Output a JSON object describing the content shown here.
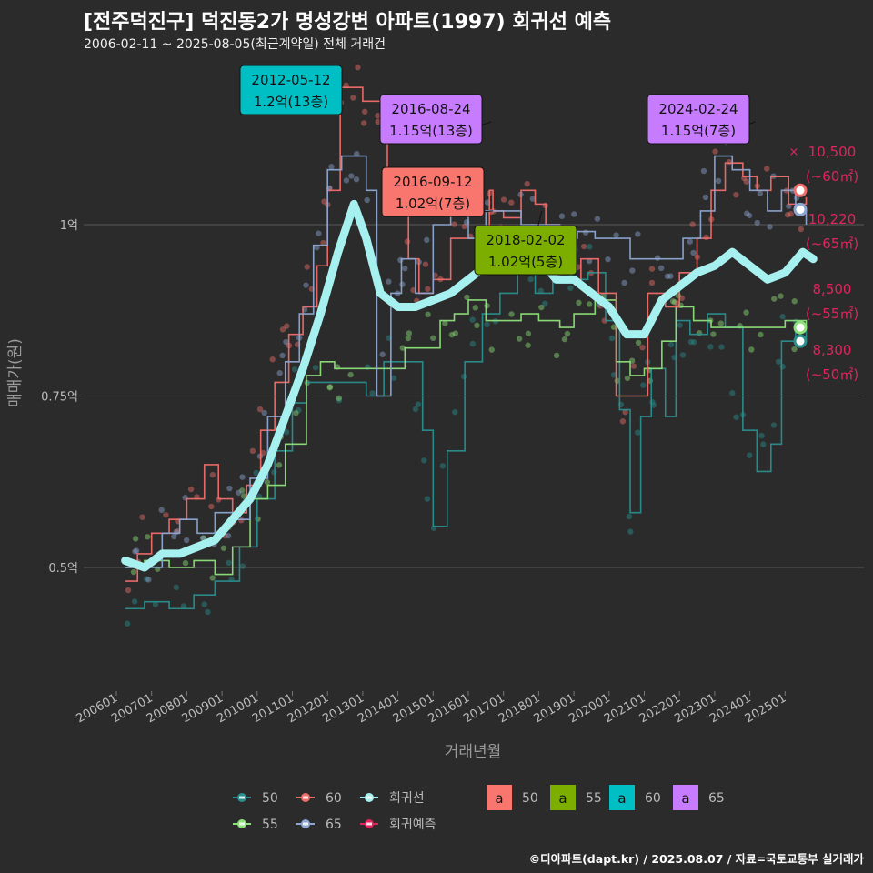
{
  "header": {
    "title": "[전주덕진구] 덕진동2가 명성강변 아파트(1997) 회귀선 예측",
    "subtitle": "2006-02-11 ~ 2025-08-05(최근계약일) 전체 거래건"
  },
  "caption": "©디아파트(dapt.kr) / 2025.08.07 / 자료=국토교통부 실거래가",
  "colors": {
    "s50": "#2a8f8f",
    "s55": "#8ee07a",
    "s60": "#f06e6a",
    "s65": "#8ea6d2",
    "trend": "#a6f0f0",
    "forecast": "#e0245e",
    "lbl50": "#f8766d",
    "lbl55": "#7cae00",
    "lbl60": "#00bfc4",
    "lbl65": "#c77cff"
  },
  "chart_data": {
    "type": "line",
    "title": "[전주덕진구] 덕진동2가 명성강변 아파트(1997) 회귀선 예측",
    "xlabel": "거래년월",
    "ylabel": "매매가(원)",
    "x_ticks": [
      "200601",
      "200701",
      "200801",
      "200901",
      "201001",
      "201101",
      "201201",
      "201301",
      "201401",
      "201501",
      "201601",
      "201701",
      "201801",
      "201901",
      "202001",
      "202101",
      "202201",
      "202301",
      "202401",
      "202501"
    ],
    "y_ticks": [
      {
        "value": 0.5,
        "label": "0.5억"
      },
      {
        "value": 0.75,
        "label": "0.75억"
      },
      {
        "value": 1.0,
        "label": "1억"
      }
    ],
    "ylim": [
      0.33,
      1.23
    ],
    "xlim": [
      2005.8,
      2026.0
    ],
    "grid": true,
    "legend_position": "bottom",
    "series": [
      {
        "name": "50",
        "points": [
          [
            2006.25,
            0.44
          ],
          [
            2006.8,
            0.45
          ],
          [
            2007.5,
            0.44
          ],
          [
            2008.2,
            0.46
          ],
          [
            2008.8,
            0.48
          ],
          [
            2009.5,
            0.53
          ],
          [
            2010.0,
            0.6
          ],
          [
            2010.5,
            0.67
          ],
          [
            2011.0,
            0.74
          ],
          [
            2011.4,
            0.77
          ],
          [
            2013.1,
            0.75
          ],
          [
            2013.6,
            0.8
          ],
          [
            2014.2,
            0.8
          ],
          [
            2014.7,
            0.7
          ],
          [
            2015.0,
            0.56
          ],
          [
            2015.4,
            0.67
          ],
          [
            2015.9,
            0.8
          ],
          [
            2016.4,
            0.87
          ],
          [
            2016.9,
            0.9
          ],
          [
            2017.4,
            0.93
          ],
          [
            2017.9,
            0.9
          ],
          [
            2018.4,
            0.95
          ],
          [
            2018.9,
            0.92
          ],
          [
            2019.4,
            0.93
          ],
          [
            2019.9,
            0.86
          ],
          [
            2020.3,
            0.73
          ],
          [
            2020.6,
            0.58
          ],
          [
            2020.9,
            0.72
          ],
          [
            2021.2,
            0.79
          ],
          [
            2021.6,
            0.72
          ],
          [
            2021.9,
            0.86
          ],
          [
            2022.3,
            0.84
          ],
          [
            2022.8,
            0.87
          ],
          [
            2023.3,
            0.85
          ],
          [
            2023.8,
            0.7
          ],
          [
            2024.2,
            0.64
          ],
          [
            2024.6,
            0.68
          ],
          [
            2024.9,
            0.83
          ],
          [
            2025.3,
            0.85
          ],
          [
            2025.6,
            0.83
          ]
        ]
      },
      {
        "name": "55",
        "points": [
          [
            2006.25,
            0.5
          ],
          [
            2006.8,
            0.51
          ],
          [
            2007.5,
            0.5
          ],
          [
            2008.2,
            0.51
          ],
          [
            2008.8,
            0.49
          ],
          [
            2009.3,
            0.53
          ],
          [
            2009.8,
            0.6
          ],
          [
            2010.3,
            0.62
          ],
          [
            2010.8,
            0.68
          ],
          [
            2011.4,
            0.78
          ],
          [
            2011.8,
            0.8
          ],
          [
            2012.2,
            0.79
          ],
          [
            2012.6,
            0.79
          ],
          [
            2014.2,
            0.82
          ],
          [
            2014.7,
            0.82
          ],
          [
            2015.2,
            0.86
          ],
          [
            2015.6,
            0.87
          ],
          [
            2016.0,
            0.89
          ],
          [
            2016.5,
            0.86
          ],
          [
            2017.0,
            0.86
          ],
          [
            2017.5,
            0.87
          ],
          [
            2018.0,
            0.86
          ],
          [
            2018.6,
            0.85
          ],
          [
            2019.0,
            0.87
          ],
          [
            2019.6,
            0.89
          ],
          [
            2020.2,
            0.8
          ],
          [
            2020.6,
            0.78
          ],
          [
            2021.0,
            0.79
          ],
          [
            2021.5,
            0.83
          ],
          [
            2021.9,
            0.88
          ],
          [
            2022.4,
            0.86
          ],
          [
            2022.9,
            0.85
          ],
          [
            2023.4,
            0.85
          ],
          [
            2024.0,
            0.85
          ],
          [
            2024.5,
            0.85
          ],
          [
            2025.0,
            0.86
          ],
          [
            2025.6,
            0.85
          ]
        ]
      },
      {
        "name": "60",
        "points": [
          [
            2006.25,
            0.48
          ],
          [
            2006.6,
            0.52
          ],
          [
            2007.0,
            0.55
          ],
          [
            2007.5,
            0.57
          ],
          [
            2008.0,
            0.6
          ],
          [
            2008.5,
            0.65
          ],
          [
            2008.9,
            0.6
          ],
          [
            2009.3,
            0.58
          ],
          [
            2009.7,
            0.62
          ],
          [
            2010.1,
            0.7
          ],
          [
            2010.5,
            0.77
          ],
          [
            2010.9,
            0.84
          ],
          [
            2011.3,
            0.88
          ],
          [
            2011.7,
            0.94
          ],
          [
            2012.0,
            1.05
          ],
          [
            2012.36,
            1.2
          ],
          [
            2012.7,
            1.2
          ],
          [
            2013.0,
            1.18
          ],
          [
            2013.4,
            1.18
          ],
          [
            2013.7,
            1.05
          ],
          [
            2014.0,
            1.04
          ],
          [
            2014.3,
            0.95
          ],
          [
            2014.6,
            0.9
          ],
          [
            2015.0,
            0.92
          ],
          [
            2015.5,
            0.98
          ],
          [
            2016.0,
            0.98
          ],
          [
            2016.6,
            1.05
          ],
          [
            2016.7,
            1.02
          ],
          [
            2017.0,
            1.01
          ],
          [
            2017.5,
            1.05
          ],
          [
            2017.9,
            1.03
          ],
          [
            2018.2,
            1.0
          ],
          [
            2018.6,
            0.92
          ],
          [
            2019.2,
            0.95
          ],
          [
            2019.7,
            0.9
          ],
          [
            2020.2,
            0.75
          ],
          [
            2020.7,
            0.75
          ],
          [
            2021.1,
            0.9
          ],
          [
            2021.6,
            0.88
          ],
          [
            2022.0,
            0.93
          ],
          [
            2022.5,
            0.98
          ],
          [
            2022.9,
            1.05
          ],
          [
            2023.3,
            1.09
          ],
          [
            2023.8,
            1.07
          ],
          [
            2024.2,
            1.05
          ],
          [
            2024.6,
            1.07
          ],
          [
            2025.1,
            1.03
          ],
          [
            2025.6,
            1.04
          ]
        ]
      },
      {
        "name": "65",
        "points": [
          [
            2006.25,
            0.5
          ],
          [
            2006.8,
            0.5
          ],
          [
            2007.3,
            0.55
          ],
          [
            2007.8,
            0.57
          ],
          [
            2008.3,
            0.55
          ],
          [
            2008.8,
            0.58
          ],
          [
            2009.3,
            0.57
          ],
          [
            2009.8,
            0.63
          ],
          [
            2010.3,
            0.72
          ],
          [
            2010.8,
            0.8
          ],
          [
            2011.2,
            0.87
          ],
          [
            2011.6,
            0.97
          ],
          [
            2012.0,
            1.08
          ],
          [
            2012.4,
            1.1
          ],
          [
            2012.8,
            1.1
          ],
          [
            2013.1,
            1.05
          ],
          [
            2013.4,
            0.75
          ],
          [
            2013.8,
            0.9
          ],
          [
            2014.1,
            0.95
          ],
          [
            2014.5,
            0.9
          ],
          [
            2015.0,
            1.0
          ],
          [
            2015.5,
            1.02
          ],
          [
            2016.0,
            0.98
          ],
          [
            2016.5,
            1.02
          ],
          [
            2017.0,
            1.02
          ],
          [
            2017.5,
            1.0
          ],
          [
            2018.0,
            1.0
          ],
          [
            2018.6,
            0.98
          ],
          [
            2019.1,
            0.99
          ],
          [
            2019.6,
            0.98
          ],
          [
            2020.1,
            0.98
          ],
          [
            2020.6,
            0.95
          ],
          [
            2021.1,
            0.95
          ],
          [
            2021.6,
            0.95
          ],
          [
            2022.1,
            0.98
          ],
          [
            2022.6,
            1.02
          ],
          [
            2023.0,
            1.1
          ],
          [
            2023.5,
            1.08
          ],
          [
            2024.0,
            1.05
          ],
          [
            2024.5,
            1.02
          ],
          [
            2024.9,
            1.05
          ],
          [
            2025.3,
            1.02
          ],
          [
            2025.6,
            1.0
          ]
        ]
      },
      {
        "name": "회귀선",
        "points": [
          [
            2006.25,
            0.51
          ],
          [
            2006.8,
            0.5
          ],
          [
            2007.3,
            0.52
          ],
          [
            2007.8,
            0.52
          ],
          [
            2008.3,
            0.53
          ],
          [
            2008.8,
            0.54
          ],
          [
            2009.3,
            0.57
          ],
          [
            2009.8,
            0.6
          ],
          [
            2010.3,
            0.65
          ],
          [
            2010.8,
            0.72
          ],
          [
            2011.3,
            0.79
          ],
          [
            2011.8,
            0.87
          ],
          [
            2012.3,
            0.96
          ],
          [
            2012.75,
            1.03
          ],
          [
            2013.1,
            0.98
          ],
          [
            2013.5,
            0.9
          ],
          [
            2014.0,
            0.88
          ],
          [
            2014.5,
            0.88
          ],
          [
            2015.0,
            0.89
          ],
          [
            2015.5,
            0.9
          ],
          [
            2016.0,
            0.92
          ],
          [
            2016.5,
            0.94
          ],
          [
            2017.0,
            0.96
          ],
          [
            2017.5,
            0.96
          ],
          [
            2018.0,
            0.95
          ],
          [
            2018.5,
            0.92
          ],
          [
            2019.0,
            0.92
          ],
          [
            2019.5,
            0.9
          ],
          [
            2020.0,
            0.88
          ],
          [
            2020.5,
            0.84
          ],
          [
            2021.0,
            0.84
          ],
          [
            2021.5,
            0.89
          ],
          [
            2022.0,
            0.91
          ],
          [
            2022.5,
            0.93
          ],
          [
            2023.0,
            0.94
          ],
          [
            2023.5,
            0.96
          ],
          [
            2024.0,
            0.94
          ],
          [
            2024.5,
            0.92
          ],
          [
            2025.0,
            0.93
          ],
          [
            2025.5,
            0.96
          ],
          [
            2025.8,
            0.95
          ]
        ]
      }
    ],
    "forecast": [
      {
        "name": "60",
        "x": 2025.65,
        "value": 1.05,
        "label": "10,500",
        "area": "(~60㎡)"
      },
      {
        "name": "65",
        "x": 2025.65,
        "value": 1.022,
        "label": "10,220",
        "area": "(~65㎡)"
      },
      {
        "name": "55",
        "x": 2025.65,
        "value": 0.85,
        "label": "8,500",
        "area": "(~55㎡)"
      },
      {
        "name": "50",
        "x": 2025.65,
        "value": 0.83,
        "label": "8,300",
        "area": "(~50㎡)"
      }
    ],
    "annotations": [
      {
        "date": "2012-05-12",
        "text": "1.2억(13층)",
        "x": 2012.36,
        "value": 1.2,
        "series": "60"
      },
      {
        "date": "2016-08-24",
        "text": "1.15억(13층)",
        "x": 2016.65,
        "value": 1.15,
        "series": "65"
      },
      {
        "date": "2016-09-12",
        "text": "1.02억(7층)",
        "x": 2016.7,
        "value": 1.02,
        "series": "50"
      },
      {
        "date": "2018-02-02",
        "text": "1.02억(5층)",
        "x": 2018.09,
        "value": 1.02,
        "series": "55"
      },
      {
        "date": "2024-02-24",
        "text": "1.15억(7층)",
        "x": 2024.15,
        "value": 1.15,
        "series": "65"
      }
    ],
    "legend": {
      "lines": [
        {
          "name": "50",
          "key": "s50"
        },
        {
          "name": "60",
          "key": "s60"
        },
        {
          "name": "회귀선",
          "key": "trend"
        },
        {
          "name": "55",
          "key": "s55"
        },
        {
          "name": "65",
          "key": "s65"
        },
        {
          "name": "회귀예측",
          "key": "forecast"
        }
      ],
      "label_keys": [
        {
          "name": "50",
          "glyph": "a",
          "key": "lbl50"
        },
        {
          "name": "55",
          "glyph": "a",
          "key": "lbl55"
        },
        {
          "name": "60",
          "glyph": "a",
          "key": "lbl60"
        },
        {
          "name": "65",
          "glyph": "a",
          "key": "lbl65"
        }
      ]
    }
  }
}
